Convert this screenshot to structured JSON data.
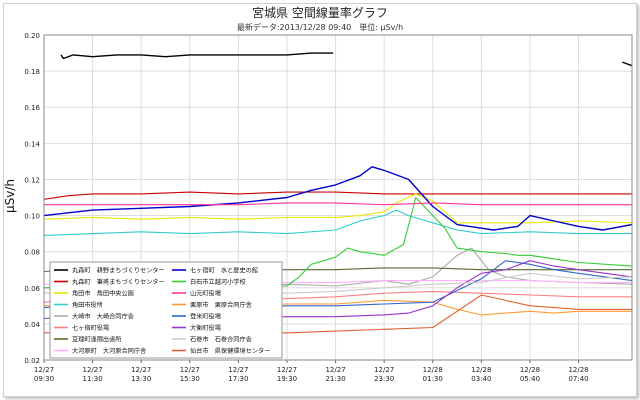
{
  "chart_data": {
    "type": "line",
    "title": "宮城県 空間線量率グラフ",
    "subtitle": "最新データ:2013/12/28 09:40　単位: μSv/h",
    "ylabel": "μSv/h",
    "xlabel": "",
    "ylim": [
      0.02,
      0.2
    ],
    "xlim": [
      0,
      24.2
    ],
    "grid": true,
    "legend_position": "bottom-left",
    "y_ticks": [
      0.02,
      0.04,
      0.06,
      0.08,
      0.1,
      0.12,
      0.14,
      0.16,
      0.18,
      0.2
    ],
    "y_tick_labels": [
      "0.02",
      "0.04",
      "0.06",
      "0.08",
      "0.10",
      "0.12",
      "0.14",
      "0.16",
      "0.18",
      "0.20"
    ],
    "x_ticks": [
      {
        "x": 0,
        "date": "12/27",
        "time": "09:30"
      },
      {
        "x": 2,
        "date": "12/27",
        "time": "11:30"
      },
      {
        "x": 4,
        "date": "12/27",
        "time": "13:30"
      },
      {
        "x": 6,
        "date": "12/27",
        "time": "15:30"
      },
      {
        "x": 8,
        "date": "12/27",
        "time": "17:30"
      },
      {
        "x": 10,
        "date": "12/27",
        "time": "19:30"
      },
      {
        "x": 12,
        "date": "12/27",
        "time": "21:30"
      },
      {
        "x": 14,
        "date": "12/27",
        "time": "23:30"
      },
      {
        "x": 16,
        "date": "12/28",
        "time": "01:30"
      },
      {
        "x": 18,
        "date": "12/28",
        "time": "03:40"
      },
      {
        "x": 20,
        "date": "12/28",
        "time": "05:40"
      },
      {
        "x": 22,
        "date": "12/28",
        "time": "07:40"
      }
    ],
    "series": [
      {
        "name": "丸森町　耕野まちづくりセンター",
        "color": "#000000",
        "points": [
          [
            0.7,
            0.189
          ],
          [
            0.8,
            0.187
          ],
          [
            1.2,
            0.189
          ],
          [
            2,
            0.188
          ],
          [
            3,
            0.189
          ],
          [
            4,
            0.189
          ],
          [
            5,
            0.188
          ],
          [
            6,
            0.189
          ],
          [
            7,
            0.189
          ],
          [
            8,
            0.189
          ],
          [
            9,
            0.189
          ],
          [
            10,
            0.189
          ],
          [
            11,
            0.19
          ],
          [
            11.9,
            0.19
          ]
        ]
      },
      {
        "name": "丸森町　筆甫まちづくりセンター",
        "color": "#cc0000",
        "points": [
          [
            0,
            0.109
          ],
          [
            1,
            0.111
          ],
          [
            2,
            0.112
          ],
          [
            4,
            0.112
          ],
          [
            6,
            0.113
          ],
          [
            8,
            0.112
          ],
          [
            10,
            0.113
          ],
          [
            12,
            0.113
          ],
          [
            14,
            0.112
          ],
          [
            16,
            0.112
          ],
          [
            18,
            0.112
          ],
          [
            20,
            0.112
          ],
          [
            22,
            0.112
          ],
          [
            24.2,
            0.112
          ]
        ]
      },
      {
        "name": "角田市　角田中央公園",
        "color": "#e8e800",
        "points": [
          [
            0,
            0.098
          ],
          [
            2,
            0.099
          ],
          [
            4,
            0.098
          ],
          [
            6,
            0.099
          ],
          [
            8,
            0.098
          ],
          [
            10,
            0.099
          ],
          [
            12,
            0.099
          ],
          [
            13,
            0.1
          ],
          [
            14,
            0.102
          ],
          [
            14.5,
            0.107
          ],
          [
            15.3,
            0.112
          ],
          [
            16,
            0.108
          ],
          [
            16.5,
            0.102
          ],
          [
            17,
            0.096
          ],
          [
            18,
            0.096
          ],
          [
            20,
            0.096
          ],
          [
            22,
            0.097
          ],
          [
            24.2,
            0.096
          ]
        ]
      },
      {
        "name": "角田市役所",
        "color": "#33cccc",
        "points": [
          [
            0,
            0.089
          ],
          [
            2,
            0.09
          ],
          [
            4,
            0.091
          ],
          [
            6,
            0.09
          ],
          [
            8,
            0.091
          ],
          [
            10,
            0.09
          ],
          [
            12,
            0.092
          ],
          [
            13,
            0.097
          ],
          [
            14,
            0.1
          ],
          [
            14.5,
            0.103
          ],
          [
            15,
            0.1
          ],
          [
            16,
            0.096
          ],
          [
            17,
            0.092
          ],
          [
            18,
            0.09
          ],
          [
            20,
            0.091
          ],
          [
            22,
            0.09
          ],
          [
            24.2,
            0.09
          ]
        ]
      },
      {
        "name": "大崎市　大崎合同庁舎",
        "color": "#aaaaaa",
        "points": [
          [
            0,
            0.06
          ],
          [
            2,
            0.061
          ],
          [
            4,
            0.06
          ],
          [
            6,
            0.061
          ],
          [
            8,
            0.06
          ],
          [
            10,
            0.062
          ],
          [
            12,
            0.061
          ],
          [
            14,
            0.064
          ],
          [
            15,
            0.062
          ],
          [
            16,
            0.066
          ],
          [
            17,
            0.078
          ],
          [
            17.6,
            0.082
          ],
          [
            18.3,
            0.07
          ],
          [
            19,
            0.066
          ],
          [
            20,
            0.064
          ],
          [
            22,
            0.063
          ],
          [
            24.2,
            0.062
          ]
        ]
      },
      {
        "name": "七ヶ宿町役場",
        "color": "#ff8080",
        "points": [
          [
            0,
            0.052
          ],
          [
            2,
            0.054
          ],
          [
            4,
            0.053
          ],
          [
            6,
            0.054
          ],
          [
            8,
            0.053
          ],
          [
            10,
            0.054
          ],
          [
            12,
            0.055
          ],
          [
            14,
            0.057
          ],
          [
            16,
            0.058
          ],
          [
            18,
            0.057
          ],
          [
            20,
            0.056
          ],
          [
            22,
            0.055
          ],
          [
            24.2,
            0.055
          ]
        ]
      },
      {
        "name": "亘理町逢隈出張所",
        "color": "#556b2f",
        "points": [
          [
            0,
            0.069
          ],
          [
            2,
            0.07
          ],
          [
            4,
            0.07
          ],
          [
            6,
            0.07
          ],
          [
            8,
            0.07
          ],
          [
            10,
            0.07
          ],
          [
            12,
            0.07
          ],
          [
            14,
            0.071
          ],
          [
            16,
            0.071
          ],
          [
            18,
            0.07
          ],
          [
            20,
            0.07
          ],
          [
            22,
            0.07
          ],
          [
            24.2,
            0.07
          ]
        ]
      },
      {
        "name": "大河原町　大河原合同庁舎",
        "color": "#ffb0ff",
        "points": [
          [
            0,
            0.062
          ],
          [
            2,
            0.062
          ],
          [
            4,
            0.063
          ],
          [
            6,
            0.062
          ],
          [
            8,
            0.063
          ],
          [
            10,
            0.063
          ],
          [
            12,
            0.063
          ],
          [
            14,
            0.064
          ],
          [
            16,
            0.064
          ],
          [
            18,
            0.064
          ],
          [
            20,
            0.064
          ],
          [
            22,
            0.063
          ],
          [
            24.2,
            0.063
          ]
        ]
      },
      {
        "name": "七ヶ宿町　水と歴史の館",
        "color": "#0000cc",
        "points": [
          [
            0,
            0.1
          ],
          [
            2,
            0.103
          ],
          [
            4,
            0.104
          ],
          [
            6,
            0.105
          ],
          [
            8,
            0.107
          ],
          [
            10,
            0.11
          ],
          [
            11,
            0.114
          ],
          [
            12,
            0.117
          ],
          [
            13,
            0.122
          ],
          [
            13.5,
            0.127
          ],
          [
            14,
            0.125
          ],
          [
            15,
            0.12
          ],
          [
            16,
            0.105
          ],
          [
            17,
            0.095
          ],
          [
            18,
            0.093
          ],
          [
            18.5,
            0.092
          ],
          [
            19.5,
            0.094
          ],
          [
            20,
            0.1
          ],
          [
            21,
            0.097
          ],
          [
            22,
            0.094
          ],
          [
            23,
            0.092
          ],
          [
            24.2,
            0.095
          ]
        ]
      },
      {
        "name": "白石市立越河小学校",
        "color": "#33cc33",
        "points": [
          [
            0,
            0.06
          ],
          [
            2,
            0.06
          ],
          [
            4,
            0.061
          ],
          [
            6,
            0.06
          ],
          [
            8,
            0.061
          ],
          [
            10,
            0.061
          ],
          [
            10.5,
            0.066
          ],
          [
            11,
            0.073
          ],
          [
            12,
            0.077
          ],
          [
            12.5,
            0.082
          ],
          [
            13,
            0.08
          ],
          [
            14,
            0.078
          ],
          [
            14.8,
            0.084
          ],
          [
            15.3,
            0.11
          ],
          [
            16,
            0.1
          ],
          [
            16.5,
            0.093
          ],
          [
            17,
            0.082
          ],
          [
            18,
            0.08
          ],
          [
            19,
            0.079
          ],
          [
            19.5,
            0.078
          ],
          [
            20,
            0.078
          ],
          [
            21,
            0.076
          ],
          [
            22,
            0.074
          ],
          [
            24.2,
            0.072
          ]
        ]
      },
      {
        "name": "山元町役場",
        "color": "#ff3399",
        "points": [
          [
            0,
            0.106
          ],
          [
            2,
            0.106
          ],
          [
            4,
            0.106
          ],
          [
            6,
            0.106
          ],
          [
            8,
            0.106
          ],
          [
            10,
            0.107
          ],
          [
            12,
            0.107
          ],
          [
            14,
            0.106
          ],
          [
            16,
            0.107
          ],
          [
            18,
            0.106
          ],
          [
            20,
            0.106
          ],
          [
            22,
            0.106
          ],
          [
            24.2,
            0.106
          ]
        ]
      },
      {
        "name": "栗原市　栗原合同庁舎",
        "color": "#ff9933",
        "points": [
          [
            0,
            0.05
          ],
          [
            2,
            0.051
          ],
          [
            4,
            0.05
          ],
          [
            6,
            0.051
          ],
          [
            8,
            0.05
          ],
          [
            10,
            0.051
          ],
          [
            12,
            0.051
          ],
          [
            14,
            0.053
          ],
          [
            16,
            0.052
          ],
          [
            17,
            0.048
          ],
          [
            18,
            0.045
          ],
          [
            19,
            0.046
          ],
          [
            20,
            0.047
          ],
          [
            21,
            0.046
          ],
          [
            22,
            0.047
          ],
          [
            24.2,
            0.047
          ]
        ]
      },
      {
        "name": "登米町役場",
        "color": "#3366cc",
        "points": [
          [
            0,
            0.049
          ],
          [
            2,
            0.05
          ],
          [
            4,
            0.049
          ],
          [
            6,
            0.05
          ],
          [
            8,
            0.049
          ],
          [
            10,
            0.05
          ],
          [
            12,
            0.05
          ],
          [
            14,
            0.051
          ],
          [
            16,
            0.052
          ],
          [
            18,
            0.065
          ],
          [
            19,
            0.075
          ],
          [
            20,
            0.073
          ],
          [
            21,
            0.07
          ],
          [
            22,
            0.068
          ],
          [
            24.2,
            0.064
          ]
        ]
      },
      {
        "name": "大衡町役場",
        "color": "#9933cc",
        "points": [
          [
            0,
            0.043
          ],
          [
            2,
            0.044
          ],
          [
            4,
            0.043
          ],
          [
            6,
            0.044
          ],
          [
            8,
            0.043
          ],
          [
            10,
            0.044
          ],
          [
            12,
            0.044
          ],
          [
            14,
            0.045
          ],
          [
            15,
            0.046
          ],
          [
            16,
            0.05
          ],
          [
            17,
            0.06
          ],
          [
            18,
            0.068
          ],
          [
            19,
            0.07
          ],
          [
            20,
            0.075
          ],
          [
            21,
            0.072
          ],
          [
            22,
            0.07
          ],
          [
            24.2,
            0.066
          ]
        ]
      },
      {
        "name": "石巻市　石巻合同庁舎",
        "color": "#cccccc",
        "points": [
          [
            0,
            0.057
          ],
          [
            2,
            0.058
          ],
          [
            4,
            0.057
          ],
          [
            6,
            0.058
          ],
          [
            8,
            0.058
          ],
          [
            10,
            0.057
          ],
          [
            12,
            0.058
          ],
          [
            14,
            0.06
          ],
          [
            16,
            0.062
          ],
          [
            18,
            0.063
          ],
          [
            20,
            0.068
          ],
          [
            22,
            0.065
          ],
          [
            24.2,
            0.066
          ]
        ]
      },
      {
        "name": "仙台市　県保健環境センター",
        "color": "#e06030",
        "points": [
          [
            0,
            0.035
          ],
          [
            2,
            0.036
          ],
          [
            4,
            0.036
          ],
          [
            6,
            0.035
          ],
          [
            8,
            0.036
          ],
          [
            10,
            0.035
          ],
          [
            12,
            0.036
          ],
          [
            14,
            0.037
          ],
          [
            16,
            0.038
          ],
          [
            17,
            0.047
          ],
          [
            18,
            0.056
          ],
          [
            19,
            0.053
          ],
          [
            20,
            0.05
          ],
          [
            21,
            0.049
          ],
          [
            22,
            0.048
          ],
          [
            24.2,
            0.048
          ]
        ]
      }
    ],
    "extra_segments": [
      {
        "series": 0,
        "points": [
          [
            23.8,
            0.185
          ],
          [
            24.2,
            0.183
          ]
        ]
      }
    ]
  }
}
